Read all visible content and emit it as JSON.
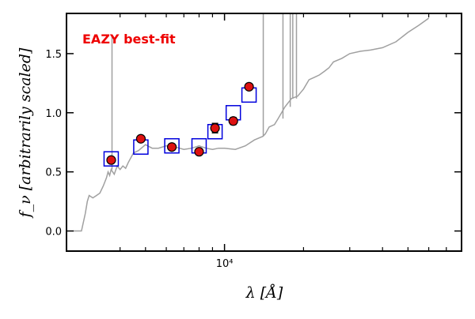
{
  "chart_data": {
    "type": "scatter",
    "annotation": "EAZY best-fit",
    "annotation_color": "#ee0000",
    "xlabel": "λ [Å]",
    "ylabel": "f_ν [arbitrarily scaled]",
    "x_scale": "log",
    "xlim": [
      2500,
      80000
    ],
    "ylim": [
      -0.17,
      1.84
    ],
    "yticks": [
      0.0,
      0.5,
      1.0,
      1.5
    ],
    "ytick_labels": [
      "0.0",
      "0.5",
      "1.0",
      "1.5"
    ],
    "xtick_major": [
      10000
    ],
    "xtick_major_labels": [
      "10⁴"
    ],
    "xtick_minor": [
      4000,
      5000,
      6000,
      7000,
      8000,
      9000,
      20000,
      30000,
      40000,
      50000,
      60000,
      70000
    ],
    "colors": {
      "model_line": "#a0a0a0",
      "model_points_edge": "#0000dd",
      "observed_fill": "#dd1111",
      "observed_edge": "#000000"
    },
    "series": [
      {
        "kind": "model_spectrum",
        "x": [
          2650,
          2750,
          2850,
          2950,
          3000,
          3050,
          3150,
          3250,
          3350,
          3450,
          3550,
          3600,
          3650,
          3700,
          3800,
          3900,
          4000,
          4100,
          4200,
          4300,
          4500,
          4700,
          5000,
          5300,
          5600,
          6000,
          6500,
          7000,
          7500,
          8000,
          8500,
          9000,
          9500,
          10000,
          11000,
          12000,
          13000,
          14000,
          14300,
          14800,
          15500,
          16000,
          17000,
          18000,
          19000,
          20000,
          21000,
          22000,
          23000,
          24000,
          25000,
          26000,
          28000,
          30000,
          33000,
          36000,
          40000,
          45000,
          50000,
          55000,
          60000
        ],
        "y": [
          0.0,
          0.0,
          0.0,
          0.15,
          0.25,
          0.3,
          0.28,
          0.3,
          0.32,
          0.38,
          0.45,
          0.5,
          0.47,
          0.52,
          0.48,
          0.55,
          0.52,
          0.55,
          0.53,
          0.58,
          0.66,
          0.68,
          0.73,
          0.7,
          0.7,
          0.72,
          0.71,
          0.69,
          0.7,
          0.72,
          0.7,
          0.69,
          0.7,
          0.7,
          0.69,
          0.72,
          0.77,
          0.8,
          0.82,
          0.88,
          0.9,
          0.95,
          1.05,
          1.12,
          1.14,
          1.2,
          1.28,
          1.3,
          1.32,
          1.35,
          1.38,
          1.43,
          1.46,
          1.5,
          1.52,
          1.53,
          1.55,
          1.6,
          1.68,
          1.74,
          1.8
        ]
      },
      {
        "kind": "emission_lines",
        "x": [
          3727,
          14050,
          16700,
          17800,
          18200,
          18800
        ],
        "y_peak": [
          1.65,
          1.84,
          1.84,
          1.84,
          1.84,
          1.84
        ]
      },
      {
        "kind": "model_photometry",
        "marker": "open-square",
        "x": [
          3700,
          4800,
          6300,
          8000,
          9200,
          10800,
          12400
        ],
        "y": [
          0.61,
          0.71,
          0.72,
          0.72,
          0.84,
          1.0,
          1.15
        ]
      },
      {
        "kind": "observed_photometry",
        "marker": "filled-circle",
        "x": [
          3700,
          4800,
          6300,
          8000,
          9200,
          10800,
          12400
        ],
        "y": [
          0.6,
          0.78,
          0.71,
          0.67,
          0.87,
          0.93,
          1.22
        ],
        "yerr": [
          0.01,
          0.015,
          0.015,
          0.015,
          0.04,
          0.03,
          0.015
        ]
      }
    ]
  }
}
